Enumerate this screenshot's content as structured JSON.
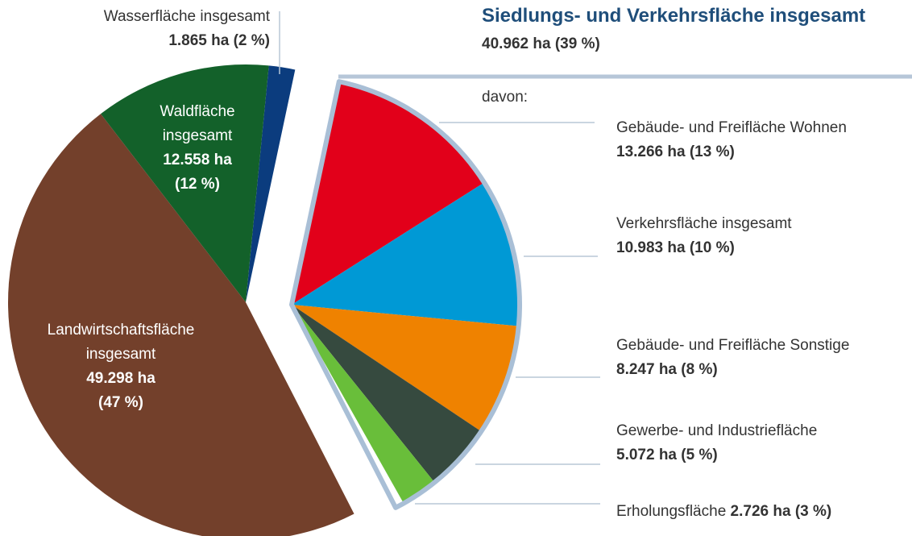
{
  "chart_data": {
    "type": "pie",
    "categories": [
      "Siedlungs- und Verkehrsfläche insgesamt",
      "Landwirtschaftsfläche insgesamt",
      "Waldfläche insgesamt",
      "Wasserfläche insgesamt"
    ],
    "values": [
      40962,
      49298,
      12558,
      1865
    ],
    "value_labels": [
      "40.962 ha",
      "49.298 ha",
      "12.558 ha",
      "1.865 ha"
    ],
    "percents": [
      39,
      47,
      12,
      2
    ],
    "percent_labels": [
      "(39 %)",
      "(47 %)",
      "(12 %)",
      "(2 %)"
    ],
    "colors": [
      "#a9bfd6",
      "#73402b",
      "#13612a",
      "#0b3c7e"
    ],
    "explode": [
      true,
      false,
      false,
      false
    ],
    "breakdown": {
      "label": "davon:",
      "categories": [
        "Gebäude- und Freifläche Wohnen",
        "Verkehrsfläche insgesamt",
        "Gebäude- und Freifläche Sonstige",
        "Gewerbe- und Industriefläche",
        "Erholungsfläche"
      ],
      "values": [
        13266,
        10983,
        8247,
        5072,
        2726
      ],
      "value_labels": [
        "13.266 ha",
        "10.983 ha",
        "8.247 ha",
        "5.072 ha",
        "2.726 ha"
      ],
      "percents": [
        13,
        10,
        8,
        5,
        3
      ],
      "percent_labels": [
        "(13 %)",
        "(10 %)",
        "(8 %)",
        "(5 %)",
        "(3 %)"
      ],
      "colors": [
        "#e2001a",
        "#0099d5",
        "#ef8200",
        "#364a3f",
        "#69be3a"
      ]
    }
  }
}
